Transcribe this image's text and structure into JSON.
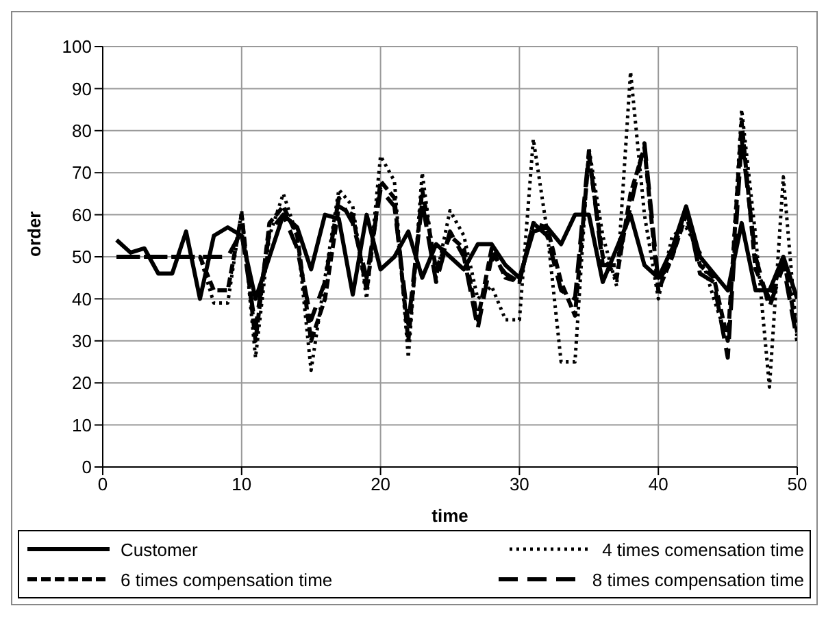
{
  "chart_data": {
    "type": "line",
    "xlabel": "time",
    "ylabel": "order",
    "x": [
      1,
      2,
      3,
      4,
      5,
      6,
      7,
      8,
      9,
      10,
      11,
      12,
      13,
      14,
      15,
      16,
      17,
      18,
      19,
      20,
      21,
      22,
      23,
      24,
      25,
      26,
      27,
      28,
      29,
      30,
      31,
      32,
      33,
      34,
      35,
      36,
      37,
      38,
      39,
      40,
      41,
      42,
      43,
      44,
      45,
      46,
      47,
      48,
      49,
      50
    ],
    "xlim": [
      0,
      50
    ],
    "xticks": [
      0,
      10,
      20,
      30,
      40,
      50
    ],
    "ylim": [
      0,
      100
    ],
    "yticks": [
      0,
      10,
      20,
      30,
      40,
      50,
      60,
      70,
      80,
      90,
      100
    ],
    "grid": true,
    "legend": "bottom",
    "marker": "none",
    "series": [
      {
        "name": "Customer",
        "color": "#000000",
        "line_style": "solid",
        "values": [
          54,
          51,
          52,
          46,
          46,
          56,
          40,
          55,
          57,
          55,
          40,
          50,
          60,
          57,
          47,
          60,
          59,
          41,
          60,
          47,
          50,
          56,
          45,
          53,
          50,
          47,
          53,
          53,
          48,
          45,
          56,
          57,
          53,
          60,
          60,
          44,
          52,
          60,
          48,
          45,
          52,
          62,
          50,
          46,
          42,
          58,
          42,
          42,
          50,
          40
        ]
      },
      {
        "name": "4 times comensation time",
        "color": "#000000",
        "line_style": "dotted",
        "values": [
          50,
          50,
          50,
          50,
          50,
          50,
          50,
          39,
          39,
          61,
          26,
          55,
          65,
          55,
          23,
          45,
          66,
          62,
          40,
          74,
          68,
          26,
          70,
          45,
          61,
          55,
          40,
          43,
          35,
          35,
          78,
          56,
          25,
          25,
          76,
          55,
          43,
          94,
          60,
          40,
          55,
          57,
          51,
          40,
          30,
          85,
          55,
          19,
          69,
          30
        ]
      },
      {
        "name": "6 times compensation time",
        "color": "#000000",
        "line_style": "dashed",
        "values": [
          50,
          50,
          50,
          50,
          50,
          50,
          50,
          42,
          42,
          60,
          30,
          58,
          62,
          55,
          30,
          40,
          62,
          60,
          42,
          68,
          64,
          30,
          66,
          47,
          55,
          52,
          35,
          52,
          45,
          44,
          58,
          57,
          44,
          36,
          74,
          50,
          45,
          65,
          76,
          42,
          50,
          60,
          48,
          45,
          30,
          82,
          47,
          40,
          50,
          32
        ]
      },
      {
        "name": "8 times compensation time",
        "color": "#000000",
        "line_style": "longdash",
        "values": [
          50,
          50,
          50,
          50,
          50,
          50,
          50,
          50,
          50,
          56,
          33,
          56,
          60,
          52,
          35,
          44,
          64,
          58,
          45,
          66,
          62,
          34,
          63,
          44,
          56,
          50,
          33,
          50,
          46,
          44,
          58,
          55,
          42,
          40,
          75,
          48,
          48,
          62,
          77,
          44,
          50,
          62,
          46,
          44,
          26,
          78,
          50,
          38,
          48,
          30
        ]
      }
    ]
  }
}
